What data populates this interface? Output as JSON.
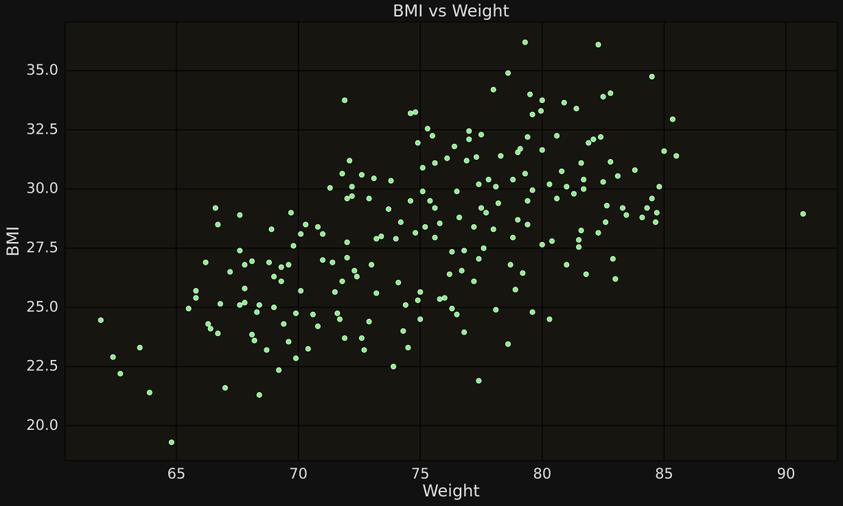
{
  "chart_data": {
    "type": "scatter",
    "title": "BMI vs Weight",
    "x_label": "Weight",
    "y_label": "BMI",
    "color": "#7cfc7c",
    "grid": true,
    "xlim": [
      60.44,
      92.11
    ],
    "ylim": [
      18.52,
      37.06
    ],
    "xticks": [
      65,
      70,
      75,
      80,
      85,
      90
    ],
    "yticks": [
      {
        "value": 20,
        "label": "20.0"
      },
      {
        "value": 22.5,
        "label": "22.5"
      },
      {
        "value": 25,
        "label": "25.0"
      },
      {
        "value": 27.5,
        "label": "27.5"
      },
      {
        "value": 30,
        "label": "30.0"
      },
      {
        "value": 32.5,
        "label": "32.5"
      },
      {
        "value": 35,
        "label": "35.0"
      }
    ],
    "x": [
      61.9,
      62.4,
      62.7,
      63.5,
      63.9,
      64.8,
      65.5,
      65.8,
      65.8,
      66.2,
      66.3,
      66.4,
      66.6,
      66.7,
      66.7,
      66.8,
      67.0,
      67.2,
      67.6,
      67.6,
      67.6,
      67.8,
      67.8,
      67.8,
      68.1,
      68.1,
      68.2,
      68.3,
      68.4,
      68.4,
      68.7,
      68.8,
      68.9,
      69.0,
      69.0,
      69.2,
      69.3,
      69.3,
      69.4,
      69.6,
      69.6,
      69.7,
      69.8,
      69.9,
      69.9,
      70.1,
      70.1,
      70.3,
      70.4,
      70.6,
      70.8,
      70.8,
      71.0,
      71.0,
      71.3,
      71.4,
      71.5,
      71.6,
      71.7,
      71.8,
      71.8,
      71.9,
      71.9,
      72.0,
      72.0,
      72.0,
      72.1,
      72.2,
      72.2,
      72.3,
      72.4,
      72.6,
      72.6,
      72.7,
      72.9,
      72.9,
      73.0,
      73.1,
      73.2,
      73.2,
      73.4,
      73.7,
      73.8,
      73.9,
      74.0,
      74.1,
      74.2,
      74.3,
      74.4,
      74.5,
      74.6,
      74.6,
      74.8,
      74.8,
      74.9,
      74.9,
      75.0,
      75.0,
      75.1,
      75.1,
      75.2,
      75.3,
      75.4,
      75.5,
      75.6,
      75.6,
      75.6,
      75.8,
      75.8,
      76.0,
      76.1,
      76.2,
      76.3,
      76.3,
      76.4,
      76.5,
      76.5,
      76.6,
      76.7,
      76.8,
      76.8,
      76.9,
      77.0,
      77.0,
      77.2,
      77.2,
      77.3,
      77.4,
      77.4,
      77.4,
      77.5,
      77.5,
      77.6,
      77.7,
      77.8,
      78.0,
      78.0,
      78.1,
      78.1,
      78.2,
      78.3,
      78.6,
      78.6,
      78.7,
      78.8,
      78.9,
      78.8,
      79.0,
      79.0,
      79.1,
      79.2,
      79.3,
      79.3,
      79.4,
      79.4,
      79.4,
      79.5,
      79.6,
      79.6,
      79.6,
      79.95,
      80.0,
      80.0,
      80.0,
      80.3,
      80.3,
      80.4,
      80.6,
      80.6,
      80.8,
      80.9,
      81.0,
      81.0,
      81.3,
      81.4,
      81.5,
      81.5,
      81.6,
      81.6,
      81.7,
      81.7,
      81.8,
      81.9,
      82.1,
      82.3,
      82.3,
      82.4,
      82.5,
      82.5,
      82.6,
      82.65,
      82.8,
      82.8,
      82.9,
      83.0,
      83.1,
      83.3,
      83.45,
      83.8,
      84.1,
      84.3,
      84.5,
      84.5,
      84.65,
      84.7,
      84.8,
      85.0,
      85.35,
      85.5,
      90.7
    ],
    "values": [
      24.46,
      22.9,
      22.2,
      23.3,
      21.4,
      19.3,
      24.95,
      25.7,
      25.4,
      26.9,
      24.3,
      24.1,
      29.2,
      28.5,
      23.9,
      25.15,
      21.6,
      26.5,
      28.9,
      27.4,
      25.1,
      26.8,
      25.8,
      25.2,
      23.85,
      26.95,
      23.6,
      24.8,
      21.3,
      25.1,
      23.2,
      26.9,
      28.3,
      25.0,
      26.3,
      22.35,
      26.7,
      26.1,
      24.3,
      26.8,
      23.55,
      29.0,
      27.6,
      24.75,
      22.85,
      28.1,
      25.7,
      28.5,
      23.25,
      24.7,
      24.2,
      28.4,
      28.1,
      27.0,
      30.05,
      26.9,
      25.65,
      24.75,
      24.5,
      30.65,
      26.1,
      23.7,
      33.75,
      27.75,
      27.1,
      29.6,
      31.2,
      29.7,
      30.1,
      26.55,
      26.3,
      23.7,
      30.6,
      23.2,
      29.6,
      24.4,
      26.8,
      30.45,
      25.6,
      27.9,
      28.0,
      29.15,
      30.35,
      22.5,
      27.9,
      26.05,
      28.6,
      24.0,
      25.1,
      23.3,
      29.5,
      33.2,
      33.25,
      28.15,
      31.95,
      25.3,
      24.5,
      25.65,
      29.9,
      30.9,
      28.4,
      32.55,
      29.5,
      32.25,
      31.1,
      29.2,
      27.95,
      25.35,
      28.55,
      25.4,
      31.3,
      26.4,
      24.95,
      27.35,
      31.8,
      29.9,
      24.7,
      28.8,
      26.55,
      23.95,
      27.4,
      31.2,
      32.45,
      32.1,
      26.1,
      28.4,
      31.35,
      21.9,
      27.05,
      30.2,
      32.3,
      29.2,
      27.5,
      29.0,
      30.4,
      28.3,
      34.2,
      24.9,
      30.1,
      29.4,
      31.4,
      34.9,
      23.45,
      26.8,
      30.4,
      25.75,
      27.95,
      31.55,
      28.7,
      31.7,
      26.45,
      36.2,
      30.65,
      28.5,
      29.5,
      32.2,
      34.0,
      33.15,
      24.8,
      29.95,
      33.3,
      27.65,
      31.65,
      33.75,
      30.2,
      24.5,
      27.8,
      29.6,
      32.25,
      30.75,
      33.65,
      30.1,
      26.8,
      29.8,
      33.4,
      27.85,
      27.55,
      31.1,
      28.25,
      30.4,
      30.0,
      26.4,
      31.95,
      32.1,
      28.15,
      36.1,
      32.2,
      33.9,
      30.3,
      28.6,
      29.3,
      31.15,
      34.05,
      27.05,
      26.2,
      30.55,
      29.2,
      28.9,
      30.8,
      28.8,
      29.2,
      34.75,
      29.6,
      28.6,
      29.0,
      30.1,
      31.6,
      32.95,
      31.4,
      28.95
    ]
  }
}
